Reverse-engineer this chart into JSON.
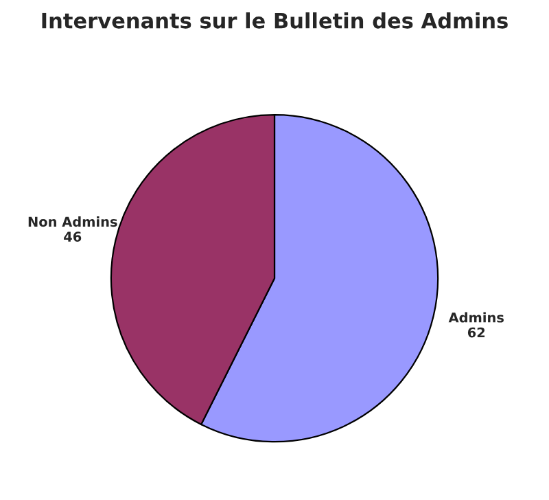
{
  "chart_data": {
    "type": "pie",
    "title": "Intervenants sur le Bulletin des Admins",
    "categories": [
      "Admins",
      "Non Admins"
    ],
    "values": [
      62,
      46
    ],
    "colors": [
      "#9999ff",
      "#993366"
    ],
    "data_labels": true
  }
}
